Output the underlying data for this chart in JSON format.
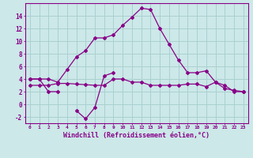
{
  "hours": [
    0,
    1,
    2,
    3,
    4,
    5,
    6,
    7,
    8,
    9,
    10,
    11,
    12,
    13,
    14,
    15,
    16,
    17,
    18,
    19,
    20,
    21,
    22,
    23
  ],
  "upper": [
    4,
    4,
    4,
    3.5,
    5.5,
    7.5,
    8.5,
    10.5,
    10.5,
    11.0,
    12.5,
    13.8,
    15.2,
    15.0,
    12.0,
    9.5,
    7.0,
    5.0,
    5.0,
    5.3,
    3.5,
    3.0,
    2.0,
    2.0
  ],
  "mid": [
    3.0,
    3.0,
    3.0,
    3.3,
    3.3,
    3.2,
    3.1,
    3.0,
    3.0,
    4.0,
    4.0,
    3.5,
    3.5,
    3.0,
    3.0,
    3.0,
    3.0,
    3.2,
    3.2,
    2.8,
    3.5,
    2.5,
    2.2,
    2.0
  ],
  "lower": [
    4.0,
    4.0,
    2.0,
    2.0,
    null,
    -1.0,
    -2.3,
    -0.5,
    4.5,
    5.0,
    null,
    null,
    null,
    null,
    null,
    null,
    null,
    null,
    null,
    null,
    null,
    null,
    null,
    null
  ],
  "ylim": [
    -3,
    16
  ],
  "yticks": [
    -2,
    0,
    2,
    4,
    6,
    8,
    10,
    12,
    14
  ],
  "xlim": [
    -0.5,
    23.5
  ],
  "bg_color": "#cce8e8",
  "grid_color": "#aad0d0",
  "line_color": "#880088",
  "xlabel": "Windchill (Refroidissement éolien,°C)"
}
